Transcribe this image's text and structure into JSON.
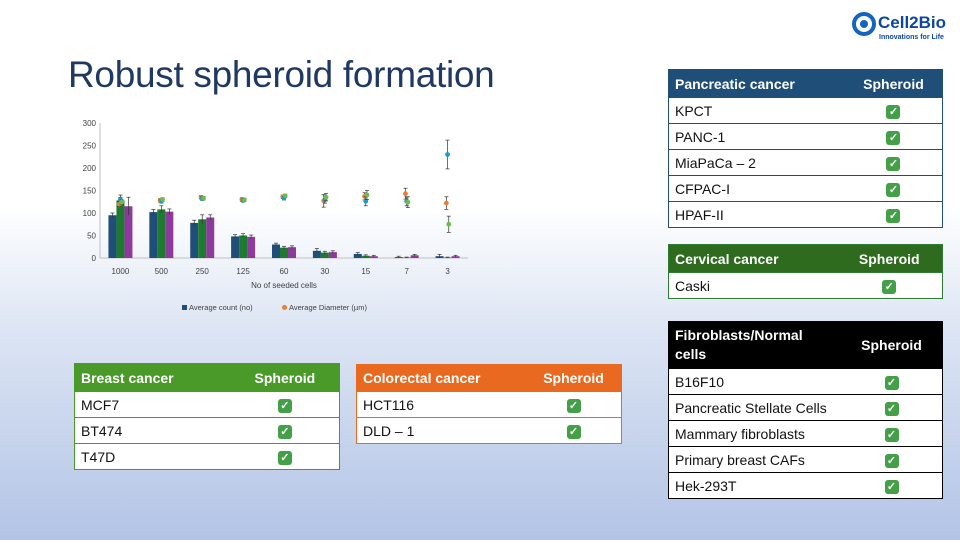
{
  "title": "Robust spheroid formation",
  "logo": {
    "brand": "Cell2Bio",
    "tagline": "Innovations for Life",
    "color": "#0d47a1"
  },
  "chart_data": {
    "type": "bar",
    "xlabel": "No of seeded cells",
    "categories": [
      "1000",
      "500",
      "250",
      "125",
      "60",
      "30",
      "15",
      "7",
      "3"
    ],
    "ylim": [
      0,
      300
    ],
    "yticks": [
      0,
      50,
      100,
      150,
      200,
      250,
      300
    ],
    "series": [
      {
        "name": "Average count (no)",
        "type": "bar",
        "color": "#1f4e79",
        "values": [
          95,
          102,
          78,
          48,
          30,
          16,
          9,
          2,
          4
        ],
        "errors": [
          5,
          6,
          6,
          4,
          3,
          5,
          3,
          2,
          4
        ]
      },
      {
        "type": "bar",
        "color": "#1e7a2e",
        "values": [
          128,
          108,
          86,
          50,
          23,
          12,
          5,
          1,
          1
        ],
        "errors": [
          12,
          8,
          10,
          4,
          3,
          3,
          2,
          1,
          1
        ]
      },
      {
        "type": "bar",
        "color": "#8e3a9c",
        "values": [
          115,
          103,
          90,
          47,
          24,
          13,
          4,
          6,
          4
        ],
        "errors": [
          20,
          6,
          6,
          4,
          3,
          3,
          2,
          2,
          2
        ]
      },
      {
        "name": "Average Diameter (µm)",
        "type": "scatter",
        "color": "#ed7d31",
        "values": [
          120,
          128,
          135,
          130,
          136,
          127,
          137,
          143,
          122
        ],
        "errors": [
          5,
          4,
          4,
          4,
          4,
          14,
          8,
          12,
          14
        ]
      },
      {
        "type": "scatter",
        "color": "#1e9bd7",
        "values": [
          130,
          126,
          132,
          128,
          133,
          130,
          126,
          126,
          230
        ],
        "errors": [
          5,
          4,
          4,
          4,
          4,
          8,
          10,
          10,
          32
        ]
      },
      {
        "type": "scatter",
        "color": "#6abf4b",
        "values": [
          124,
          130,
          133,
          129,
          138,
          135,
          140,
          124,
          75
        ],
        "errors": [
          5,
          4,
          4,
          4,
          4,
          8,
          10,
          12,
          18
        ]
      }
    ],
    "legend": [
      "Average count (no)",
      "Average Diameter (µm)"
    ],
    "legend_position": "bottom",
    "grid": false
  },
  "tables": {
    "pancreatic": {
      "header": "Pancreatic cancer",
      "col": "Spheroid",
      "color": "#1f4e79",
      "rows": [
        "KPCT",
        "PANC-1",
        "MiaPaCa – 2",
        "CFPAC-I",
        "HPAF-II"
      ]
    },
    "cervical": {
      "header": "Cervical cancer",
      "col": "Spheroid",
      "color": "#2e6b1f",
      "rows": [
        "Caski"
      ]
    },
    "fibroblasts": {
      "header": "Fibroblasts/Normal cells",
      "col": "Spheroid",
      "color": "#000000",
      "rows": [
        "B16F10",
        "Pancreatic Stellate Cells",
        "Mammary fibroblasts",
        "Primary breast CAFs",
        "Hek-293T"
      ]
    },
    "breast": {
      "header": "Breast cancer",
      "col": "Spheroid",
      "color": "#4a9a2a",
      "rows": [
        "MCF7",
        "BT474",
        "T47D"
      ]
    },
    "colorectal": {
      "header": "Colorectal cancer",
      "col": "Spheroid",
      "color": "#e8691f",
      "rows": [
        "HCT116",
        "DLD – 1"
      ]
    }
  },
  "check_icon": "check-mark-icon"
}
